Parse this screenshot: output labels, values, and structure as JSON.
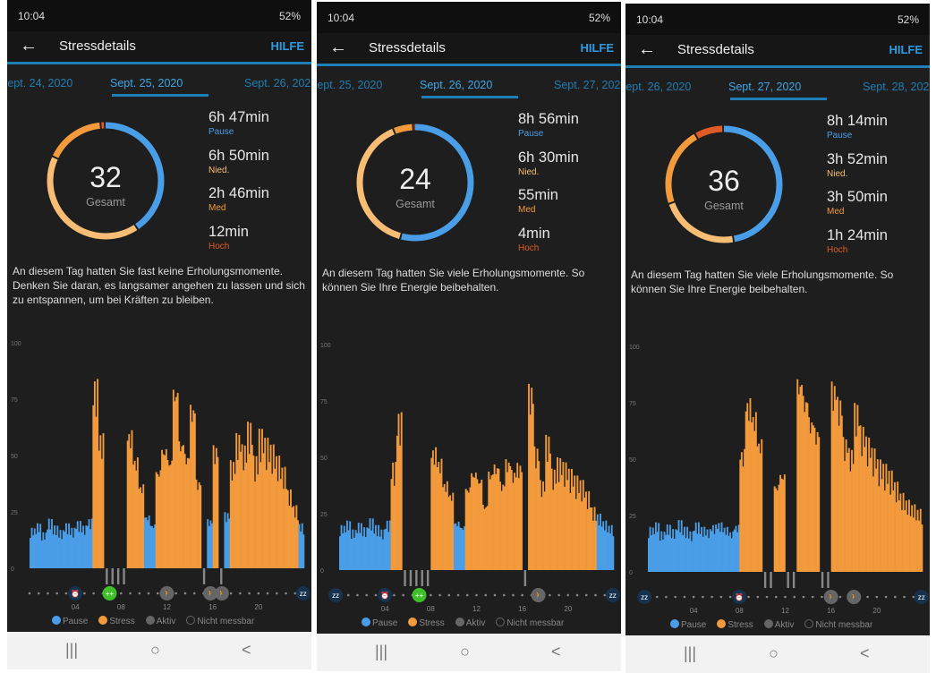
{
  "colors": {
    "pause": "#4a9ee8",
    "low": "#f7bd74",
    "med": "#f29a3c",
    "high": "#de5b28",
    "active": "#888888",
    "accent": "#2e9be0"
  },
  "panels": [
    {
      "status": {
        "time": "10:04",
        "battery": "52%"
      },
      "header": {
        "title": "Stressdetails",
        "help": "HILFE"
      },
      "tabs": {
        "prev": "Sept. 24, 2020",
        "active": "Sept. 25, 2020",
        "next": "Sept. 26, 2020"
      },
      "score": "32",
      "score_label": "Gesamt",
      "stats": [
        {
          "value": "6h 47min",
          "label": "Pause",
          "minutes": 407
        },
        {
          "value": "6h 50min",
          "label": "Nied.",
          "minutes": 410
        },
        {
          "value": "2h 46min",
          "label": "Med",
          "minutes": 166
        },
        {
          "value": "12min",
          "label": "Hoch",
          "minutes": 12
        }
      ],
      "description": "An diesem Tag hatten Sie fast keine Erholungsmomente. Denken Sie daran, es langsamer angehen zu lassen und sich zu entspannen, um bei Kräften zu bleiben.",
      "icons": [
        {
          "hour": 4,
          "type": "alarm"
        },
        {
          "hour": 7,
          "type": "body-battery"
        },
        {
          "hour": 12,
          "type": "walk"
        },
        {
          "hour": 15.8,
          "type": "walk"
        },
        {
          "hour": 16.8,
          "type": "walk"
        },
        {
          "hour": 23.9,
          "type": "sleep"
        }
      ]
    },
    {
      "status": {
        "time": "10:04",
        "battery": "52%"
      },
      "header": {
        "title": "Stressdetails",
        "help": "HILFE"
      },
      "tabs": {
        "prev": "Sept. 25, 2020",
        "active": "Sept. 26, 2020",
        "next": "Sept. 27, 2020"
      },
      "score": "24",
      "score_label": "Gesamt",
      "stats": [
        {
          "value": "8h 56min",
          "label": "Pause",
          "minutes": 536
        },
        {
          "value": "6h 30min",
          "label": "Nied.",
          "minutes": 390
        },
        {
          "value": "55min",
          "label": "Med",
          "minutes": 55
        },
        {
          "value": "4min",
          "label": "Hoch",
          "minutes": 4
        }
      ],
      "description": "An diesem Tag hatten Sie viele Erholungsmomente. So können Sie Ihre Energie beibehalten.",
      "icons": [
        {
          "hour": -0.3,
          "type": "sleep"
        },
        {
          "hour": 4,
          "type": "alarm"
        },
        {
          "hour": 7,
          "type": "body-battery"
        },
        {
          "hour": 17.4,
          "type": "walk"
        },
        {
          "hour": 23.9,
          "type": "sleep"
        }
      ]
    },
    {
      "status": {
        "time": "10:04",
        "battery": "52%"
      },
      "header": {
        "title": "Stressdetails",
        "help": "HILFE"
      },
      "tabs": {
        "prev": "Sept. 26, 2020",
        "active": "Sept. 27, 2020",
        "next": "Sept. 28, 2020"
      },
      "score": "36",
      "score_label": "Gesamt",
      "stats": [
        {
          "value": "8h 14min",
          "label": "Pause",
          "minutes": 494
        },
        {
          "value": "3h 52min",
          "label": "Nied.",
          "minutes": 232
        },
        {
          "value": "3h 50min",
          "label": "Med",
          "minutes": 230
        },
        {
          "value": "1h 24min",
          "label": "Hoch",
          "minutes": 84
        }
      ],
      "description": "An diesem Tag hatten Sie viele Erholungsmomente. So können Sie Ihre Energie beibehalten.",
      "icons": [
        {
          "hour": -0.3,
          "type": "sleep"
        },
        {
          "hour": 8,
          "type": "alarm"
        },
        {
          "hour": 16,
          "type": "walk"
        },
        {
          "hour": 18,
          "type": "walk"
        },
        {
          "hour": 23.9,
          "type": "sleep"
        }
      ]
    }
  ],
  "legend": [
    "Pause",
    "Stress",
    "Aktiv",
    "Nicht messbar"
  ],
  "chart_data": [
    {
      "type": "bar",
      "title": "Sept. 25, 2020",
      "x_unit": "hour",
      "x_step": 0.5,
      "ylim": [
        0,
        100
      ],
      "yticks": [
        0,
        25,
        50,
        75,
        100
      ],
      "xticks": [
        "04",
        "08",
        "12",
        "16",
        "20"
      ],
      "rest_threshold": 25,
      "values": [
        18,
        20,
        16,
        22,
        19,
        17,
        20,
        18,
        21,
        19,
        22,
        84,
        60,
        null,
        null,
        null,
        null,
        62,
        50,
        38,
        24,
        20,
        45,
        55,
        50,
        82,
        58,
        52,
        74,
        40,
        null,
        22,
        55,
        null,
        25,
        48,
        60,
        55,
        65,
        50,
        62,
        58,
        55,
        50,
        45,
        35,
        28,
        20
      ]
    },
    {
      "type": "bar",
      "title": "Sept. 26, 2020",
      "x_unit": "hour",
      "x_step": 0.5,
      "ylim": [
        0,
        100
      ],
      "yticks": [
        0,
        25,
        50,
        75,
        100
      ],
      "xticks": [
        "04",
        "08",
        "12",
        "16",
        "20"
      ],
      "rest_threshold": 25,
      "values": [
        20,
        22,
        18,
        21,
        19,
        23,
        20,
        18,
        22,
        48,
        70,
        null,
        null,
        null,
        null,
        null,
        55,
        50,
        40,
        35,
        22,
        20,
        38,
        45,
        42,
        30,
        45,
        48,
        40,
        50,
        45,
        48,
        null,
        83,
        55,
        40,
        60,
        45,
        50,
        48,
        45,
        42,
        40,
        35,
        28,
        25,
        22,
        20
      ]
    },
    {
      "type": "bar",
      "title": "Sept. 27, 2020",
      "x_unit": "hour",
      "x_step": 0.5,
      "ylim": [
        0,
        100
      ],
      "yticks": [
        0,
        25,
        50,
        75,
        100
      ],
      "xticks": [
        "04",
        "08",
        "12",
        "16",
        "20"
      ],
      "rest_threshold": 25,
      "values": [
        20,
        22,
        18,
        21,
        19,
        23,
        20,
        18,
        22,
        20,
        19,
        21,
        22,
        20,
        18,
        21,
        55,
        78,
        72,
        60,
        null,
        null,
        40,
        45,
        null,
        null,
        88,
        80,
        70,
        65,
        null,
        null,
        85,
        78,
        60,
        55,
        75,
        65,
        60,
        55,
        50,
        48,
        45,
        40,
        35,
        32,
        30,
        28
      ]
    }
  ],
  "nav": {
    "recent": "|||",
    "home": "○",
    "back": "<"
  }
}
